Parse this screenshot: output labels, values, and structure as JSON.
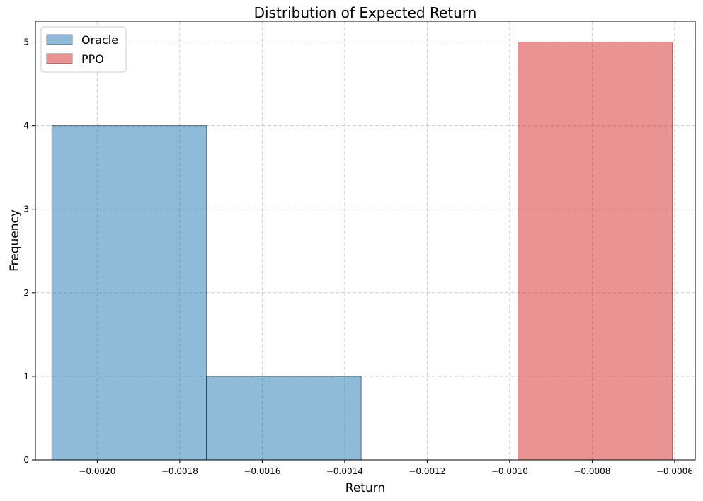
{
  "chart_data": {
    "type": "bar",
    "title": "Distribution of Expected Return",
    "xlabel": "Return",
    "ylabel": "Frequency",
    "xlim": [
      -0.00215,
      -0.00055
    ],
    "ylim": [
      0,
      5.25
    ],
    "x_ticks": [
      {
        "value": -0.002,
        "label": "−0.0020"
      },
      {
        "value": -0.0018,
        "label": "−0.0018"
      },
      {
        "value": -0.0016,
        "label": "−0.0016"
      },
      {
        "value": -0.0014,
        "label": "−0.0014"
      },
      {
        "value": -0.0012,
        "label": "−0.0012"
      },
      {
        "value": -0.001,
        "label": "−0.0010"
      },
      {
        "value": -0.0008,
        "label": "−0.0008"
      },
      {
        "value": -0.0006,
        "label": "−0.0006"
      }
    ],
    "y_ticks": [
      {
        "value": 0,
        "label": "0"
      },
      {
        "value": 1,
        "label": "1"
      },
      {
        "value": 2,
        "label": "2"
      },
      {
        "value": 3,
        "label": "3"
      },
      {
        "value": 4,
        "label": "4"
      },
      {
        "value": 5,
        "label": "5"
      }
    ],
    "grid": true,
    "legend_position": "top-left",
    "series": [
      {
        "name": "Oracle",
        "color": "#1f77b4",
        "bins": [
          {
            "x0": -0.00211,
            "x1": -0.001735,
            "count": 4
          },
          {
            "x0": -0.001735,
            "x1": -0.00136,
            "count": 1
          }
        ]
      },
      {
        "name": "PPO",
        "color": "#d62728",
        "bins": [
          {
            "x0": -0.00098,
            "x1": -0.000605,
            "count": 5
          }
        ]
      }
    ]
  }
}
